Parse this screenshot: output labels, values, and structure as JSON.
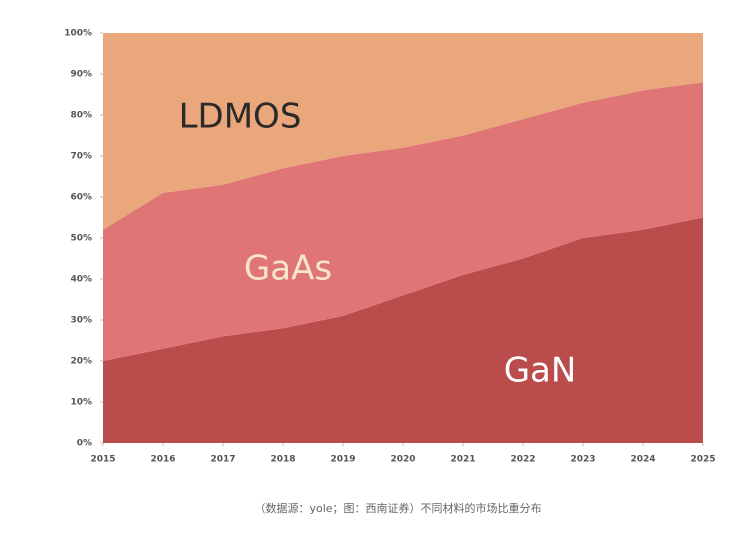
{
  "chart_data": {
    "type": "stacked-area",
    "caption": "（数据源：yole；图：西南证券）不同材料的市场比重分布",
    "x": [
      2015,
      2016,
      2017,
      2018,
      2019,
      2020,
      2021,
      2022,
      2023,
      2024,
      2025
    ],
    "xlim": [
      2015,
      2025
    ],
    "xticks": [
      2015,
      2016,
      2017,
      2018,
      2019,
      2020,
      2021,
      2022,
      2023,
      2024,
      2025
    ],
    "ylim": [
      0,
      100
    ],
    "yticks": [
      {
        "value": 0,
        "label": "0%"
      },
      {
        "value": 10,
        "label": "10%"
      },
      {
        "value": 20,
        "label": "20%"
      },
      {
        "value": 30,
        "label": "30%"
      },
      {
        "value": 40,
        "label": "40%"
      },
      {
        "value": 50,
        "label": "50%"
      },
      {
        "value": 60,
        "label": "60%"
      },
      {
        "value": 70,
        "label": "70%"
      },
      {
        "value": 80,
        "label": "80%"
      },
      {
        "value": 90,
        "label": "90%"
      },
      {
        "value": 100,
        "label": "100%"
      }
    ],
    "series": [
      {
        "name": "GaN",
        "color": "#bb4c4c",
        "values": [
          20,
          23,
          26,
          28,
          31,
          36,
          41,
          45,
          50,
          52,
          55
        ]
      },
      {
        "name": "GaAs",
        "color": "#e07575",
        "values": [
          32,
          38,
          37,
          39,
          39,
          36,
          34,
          34,
          33,
          34,
          33
        ]
      },
      {
        "name": "LDMOS",
        "color": "#eaa77c",
        "values": [
          48,
          39,
          37,
          33,
          30,
          28,
          25,
          21,
          17,
          14,
          12
        ]
      }
    ]
  }
}
